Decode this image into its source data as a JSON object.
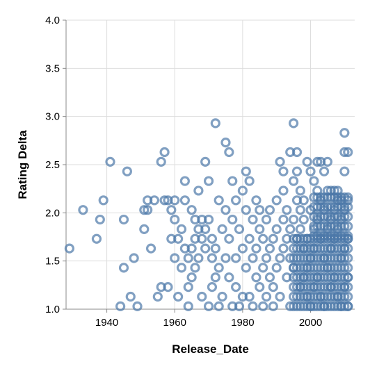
{
  "chart_data": {
    "type": "scatter",
    "xlabel": "Release_Date",
    "ylabel": "Rating Delta",
    "xlim": [
      1928,
      2013
    ],
    "ylim": [
      1.0,
      4.0
    ],
    "x_ticks": [
      1940,
      1960,
      1980,
      2000
    ],
    "x_tick_labels": [
      "1940",
      "1960",
      "1980",
      "2000"
    ],
    "y_ticks": [
      1.0,
      1.5,
      2.0,
      2.5,
      3.0,
      3.5,
      4.0
    ],
    "y_tick_labels": [
      "1.0",
      "1.5",
      "2.0",
      "2.5",
      "3.0",
      "3.5",
      "4.0"
    ],
    "grid": true,
    "marker": "open-circle",
    "point_color": "#4c78a8",
    "points": [
      [
        1929,
        1.63
      ],
      [
        1933,
        2.03
      ],
      [
        1937,
        1.73
      ],
      [
        1938,
        1.93
      ],
      [
        1939,
        2.13
      ],
      [
        1941,
        2.53
      ],
      [
        1944,
        1.03
      ],
      [
        1945,
        1.43
      ],
      [
        1945,
        1.93
      ],
      [
        1946,
        2.43
      ],
      [
        1947,
        1.13
      ],
      [
        1948,
        1.53
      ],
      [
        1949,
        1.03
      ],
      [
        1951,
        1.83
      ],
      [
        1951,
        2.03
      ],
      [
        1952,
        2.03
      ],
      [
        1952,
        2.13
      ],
      [
        1953,
        1.63
      ],
      [
        1954,
        2.13
      ],
      [
        1955,
        1.13
      ],
      [
        1956,
        1.23
      ],
      [
        1956,
        2.53
      ],
      [
        1957,
        2.63
      ],
      [
        1957,
        2.13
      ],
      [
        1958,
        1.23
      ],
      [
        1958,
        2.13
      ],
      [
        1959,
        1.73
      ],
      [
        1959,
        2.03
      ],
      [
        1960,
        1.93
      ],
      [
        1960,
        1.53
      ],
      [
        1960,
        2.13
      ],
      [
        1961,
        1.73
      ],
      [
        1961,
        1.13
      ],
      [
        1962,
        1.43
      ],
      [
        1962,
        1.83
      ],
      [
        1963,
        1.63
      ],
      [
        1963,
        2.33
      ],
      [
        1963,
        2.13
      ],
      [
        1964,
        1.53
      ],
      [
        1964,
        1.23
      ],
      [
        1964,
        1.03
      ],
      [
        1965,
        1.33
      ],
      [
        1965,
        1.63
      ],
      [
        1965,
        2.03
      ],
      [
        1966,
        1.73
      ],
      [
        1966,
        1.93
      ],
      [
        1966,
        1.43
      ],
      [
        1967,
        1.83
      ],
      [
        1967,
        1.53
      ],
      [
        1967,
        2.23
      ],
      [
        1968,
        1.13
      ],
      [
        1968,
        1.73
      ],
      [
        1968,
        1.93
      ],
      [
        1969,
        1.63
      ],
      [
        1969,
        2.53
      ],
      [
        1969,
        1.83
      ],
      [
        1970,
        1.93
      ],
      [
        1970,
        2.33
      ],
      [
        1970,
        1.03
      ],
      [
        1971,
        1.53
      ],
      [
        1971,
        1.73
      ],
      [
        1971,
        1.23
      ],
      [
        1972,
        2.93
      ],
      [
        1972,
        1.63
      ],
      [
        1972,
        1.33
      ],
      [
        1973,
        1.03
      ],
      [
        1973,
        1.43
      ],
      [
        1973,
        2.13
      ],
      [
        1974,
        1.83
      ],
      [
        1974,
        1.13
      ],
      [
        1975,
        2.73
      ],
      [
        1975,
        1.53
      ],
      [
        1975,
        2.03
      ],
      [
        1976,
        2.63
      ],
      [
        1976,
        1.73
      ],
      [
        1976,
        1.33
      ],
      [
        1977,
        2.33
      ],
      [
        1977,
        1.93
      ],
      [
        1977,
        1.03
      ],
      [
        1978,
        1.53
      ],
      [
        1978,
        2.13
      ],
      [
        1978,
        1.23
      ],
      [
        1979,
        1.83
      ],
      [
        1979,
        1.03
      ],
      [
        1980,
        2.23
      ],
      [
        1980,
        1.63
      ],
      [
        1980,
        1.13
      ],
      [
        1981,
        2.03
      ],
      [
        1981,
        2.43
      ],
      [
        1981,
        1.43
      ],
      [
        1982,
        1.73
      ],
      [
        1982,
        1.13
      ],
      [
        1982,
        2.33
      ],
      [
        1983,
        1.53
      ],
      [
        1983,
        1.93
      ],
      [
        1983,
        1.03
      ],
      [
        1984,
        1.33
      ],
      [
        1984,
        2.13
      ],
      [
        1984,
        1.63
      ],
      [
        1985,
        1.83
      ],
      [
        1985,
        1.23
      ],
      [
        1985,
        2.03
      ],
      [
        1986,
        1.43
      ],
      [
        1986,
        1.73
      ],
      [
        1986,
        1.03
      ],
      [
        1987,
        1.93
      ],
      [
        1987,
        1.53
      ],
      [
        1987,
        1.13
      ],
      [
        1988,
        1.63
      ],
      [
        1988,
        1.33
      ],
      [
        1988,
        2.03
      ],
      [
        1989,
        1.73
      ],
      [
        1989,
        1.23
      ],
      [
        1989,
        1.03
      ],
      [
        1990,
        1.83
      ],
      [
        1990,
        1.43
      ],
      [
        1990,
        2.13
      ],
      [
        1991,
        2.53
      ],
      [
        1991,
        1.53
      ],
      [
        1991,
        1.13
      ],
      [
        1992,
        2.43
      ],
      [
        1992,
        1.93
      ],
      [
        1992,
        1.63
      ],
      [
        1992,
        2.23
      ],
      [
        1993,
        1.73
      ],
      [
        1993,
        1.33
      ],
      [
        1993,
        2.03
      ],
      [
        1994,
        2.63
      ],
      [
        1994,
        1.83
      ],
      [
        1994,
        1.53
      ],
      [
        1994,
        1.03
      ],
      [
        1995,
        2.93
      ],
      [
        1995,
        2.33
      ],
      [
        1995,
        1.93
      ],
      [
        1995,
        1.43
      ],
      [
        1996,
        2.63
      ],
      [
        1996,
        2.43
      ],
      [
        1996,
        1.73
      ],
      [
        1996,
        2.13
      ],
      [
        1997,
        2.23
      ],
      [
        1997,
        1.83
      ],
      [
        1997,
        1.23
      ],
      [
        1997,
        2.03
      ],
      [
        1998,
        1.63
      ],
      [
        1998,
        1.93
      ],
      [
        1998,
        1.33
      ],
      [
        1998,
        2.13
      ],
      [
        1999,
        2.53
      ],
      [
        1999,
        1.73
      ],
      [
        1999,
        1.13
      ],
      [
        1999,
        1.43
      ],
      [
        2000,
        2.43
      ],
      [
        2000,
        2.03
      ],
      [
        2000,
        1.53
      ],
      [
        2000,
        1.03
      ],
      [
        2001,
        2.33
      ],
      [
        2001,
        1.83
      ],
      [
        2001,
        1.63
      ],
      [
        2001,
        1.23
      ],
      [
        2002,
        2.53
      ],
      [
        2002,
        2.23
      ],
      [
        2002,
        1.93
      ],
      [
        2002,
        1.33
      ],
      [
        2003,
        2.53
      ],
      [
        2003,
        2.13
      ],
      [
        2003,
        1.73
      ],
      [
        2003,
        1.13
      ],
      [
        2004,
        2.43
      ],
      [
        2004,
        2.03
      ],
      [
        2004,
        1.53
      ],
      [
        2004,
        1.03
      ],
      [
        2005,
        2.53
      ],
      [
        2005,
        2.23
      ],
      [
        2005,
        1.83
      ],
      [
        2005,
        1.43
      ],
      [
        2006,
        2.23
      ],
      [
        2006,
        1.93
      ],
      [
        2006,
        1.63
      ],
      [
        2006,
        1.23
      ],
      [
        2007,
        2.23
      ],
      [
        2007,
        2.03
      ],
      [
        2007,
        1.73
      ],
      [
        2007,
        1.33
      ],
      [
        2008,
        2.23
      ],
      [
        2008,
        2.13
      ],
      [
        2008,
        1.83
      ],
      [
        2008,
        1.13
      ],
      [
        2009,
        2.13
      ],
      [
        2009,
        1.93
      ],
      [
        2009,
        1.53
      ],
      [
        2009,
        1.03
      ],
      [
        2010,
        2.83
      ],
      [
        2010,
        2.63
      ],
      [
        2010,
        2.43
      ],
      [
        2010,
        2.03
      ],
      [
        2010,
        1.63
      ],
      [
        2010,
        1.23
      ],
      [
        2011,
        2.63
      ],
      [
        2011,
        2.13
      ],
      [
        2011,
        1.73
      ],
      [
        2011,
        1.33
      ],
      [
        2011,
        1.03
      ]
    ],
    "dense_regions": [
      {
        "x_range": [
          1995,
          2011
        ],
        "y_range": [
          1.0,
          1.73
        ],
        "x_step": 1,
        "y_step": 0.1
      },
      {
        "x_range": [
          2001,
          2011
        ],
        "y_range": [
          1.73,
          2.23
        ],
        "x_step": 1,
        "y_step": 0.1
      }
    ]
  }
}
